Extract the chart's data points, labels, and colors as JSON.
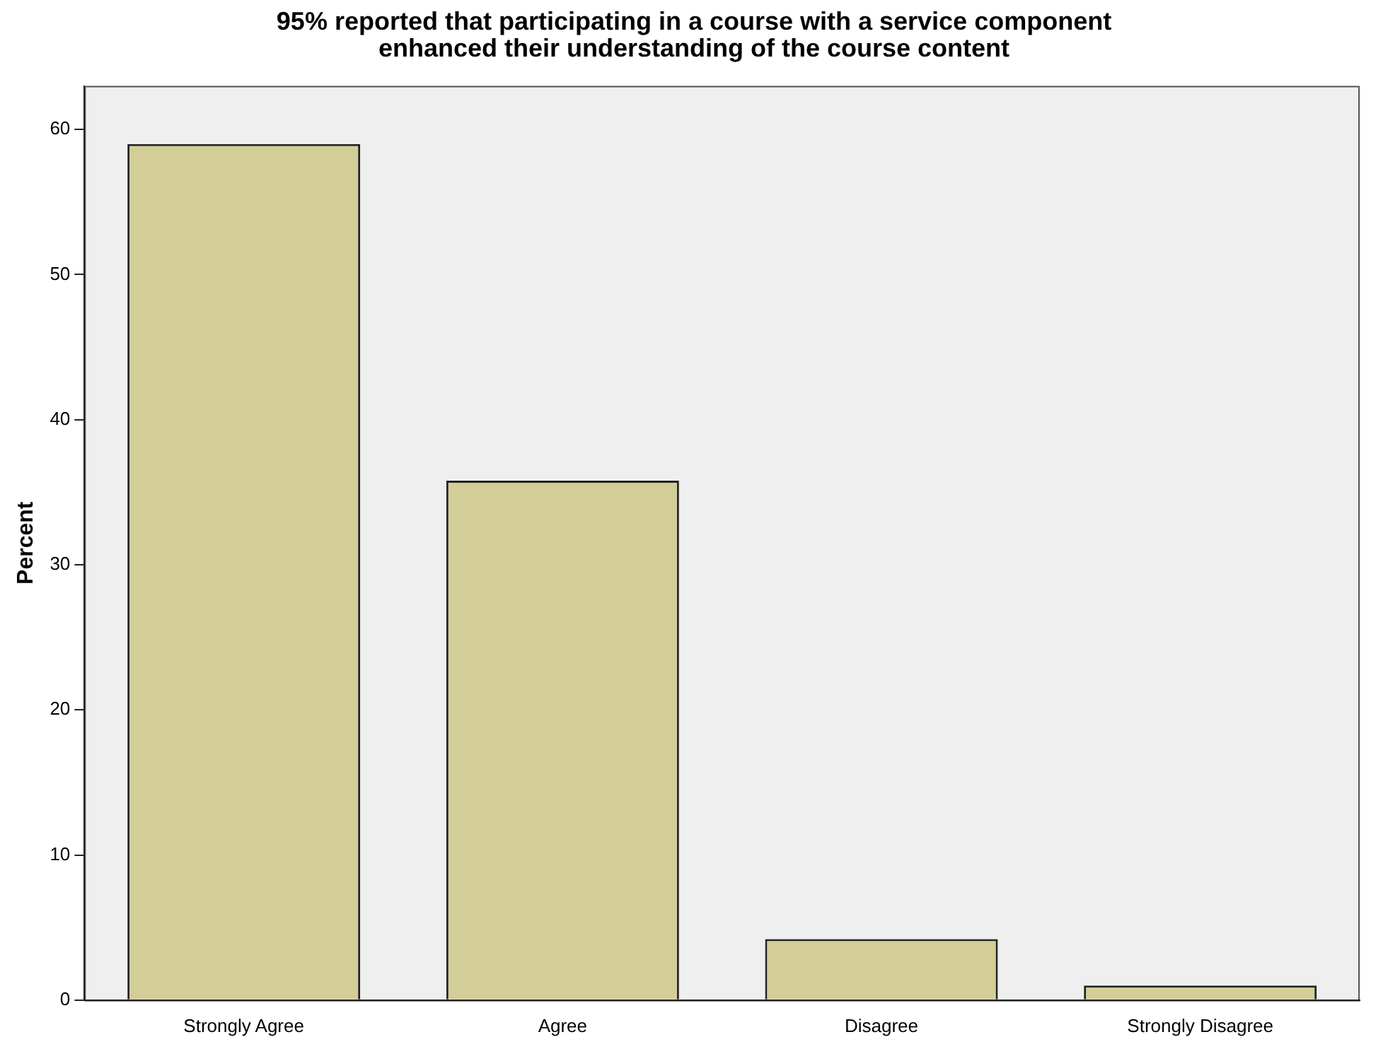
{
  "chart_data": {
    "type": "bar",
    "title": "95% reported that participating in a course with a service component enhanced their understanding of the course content",
    "ylabel": "Percent",
    "categories": [
      "Strongly Agree",
      "Agree",
      "Disagree",
      "Strongly Disagree"
    ],
    "values": [
      59.0,
      35.8,
      4.2,
      1.0
    ],
    "color": "#d3ce97",
    "ylim": [
      0,
      63
    ],
    "yticks": [
      0,
      10,
      20,
      30,
      40,
      50,
      60
    ],
    "grid": false,
    "legend": false
  }
}
